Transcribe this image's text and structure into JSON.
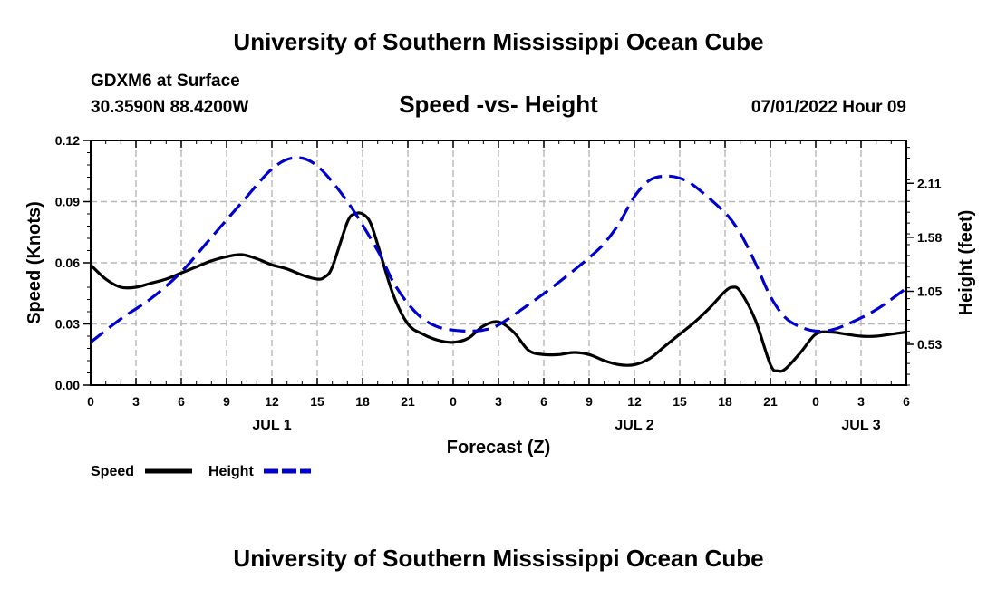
{
  "header": {
    "title": "University of Southern Mississippi Ocean Cube",
    "station": "GDXM6 at Surface",
    "location": "30.3590N  88.4200W",
    "chart_title": "Speed -vs- Height",
    "date": "07/01/2022 Hour 09",
    "footer_title": "University of Southern Mississippi Ocean Cube"
  },
  "legend": {
    "speed_label": "Speed",
    "height_label": "Height"
  },
  "colors": {
    "speed": "#000000",
    "height": "#0000cc"
  },
  "chart_data": {
    "type": "line",
    "title": "Speed -vs- Height",
    "xlabel": "Forecast (Z)",
    "ylabel": "Speed (Knots)",
    "y2label": "Height (feet)",
    "x_range": [
      0,
      54
    ],
    "x_ticks": [
      0,
      3,
      6,
      9,
      12,
      15,
      18,
      21,
      24,
      27,
      30,
      33,
      36,
      39,
      42,
      45,
      48,
      51,
      54
    ],
    "x_tick_labels": [
      "0",
      "3",
      "6",
      "9",
      "12",
      "15",
      "18",
      "21",
      "0",
      "3",
      "6",
      "9",
      "12",
      "15",
      "18",
      "21",
      "0",
      "3",
      "6"
    ],
    "day_labels": [
      {
        "label": "JUL 1",
        "x": 12
      },
      {
        "label": "JUL 2",
        "x": 36
      },
      {
        "label": "JUL 3",
        "x": 51
      }
    ],
    "ylim": [
      0,
      0.12
    ],
    "y_ticks": [
      0,
      0.03,
      0.06,
      0.09,
      0.12
    ],
    "y_tick_labels": [
      "0.00",
      "0.03",
      "0.06",
      "0.09",
      "0.12"
    ],
    "y2lim": [
      0.13,
      2.53
    ],
    "y2_ticks": [
      0.53,
      1.05,
      1.58,
      2.11
    ],
    "y2_tick_labels": [
      "0.53",
      "1.05",
      "1.58",
      "2.11"
    ],
    "grid": true,
    "series": [
      {
        "name": "Speed",
        "axis": "left",
        "style": "solid",
        "x": [
          0,
          1,
          2,
          3,
          4,
          5,
          6,
          7,
          8,
          9,
          10,
          11,
          12,
          13,
          14,
          15,
          15.5,
          16,
          17,
          17.5,
          18,
          18.5,
          19,
          20,
          21,
          22,
          23,
          24,
          25,
          26,
          27,
          28,
          29,
          30,
          31,
          32,
          33,
          34,
          35,
          36,
          37,
          38,
          39,
          40,
          41,
          42,
          42.5,
          43,
          44,
          45,
          45.5,
          46,
          47,
          48,
          49,
          50,
          51,
          52,
          53,
          54
        ],
        "values": [
          0.059,
          0.052,
          0.048,
          0.048,
          0.05,
          0.052,
          0.055,
          0.058,
          0.061,
          0.063,
          0.064,
          0.062,
          0.059,
          0.057,
          0.054,
          0.052,
          0.053,
          0.058,
          0.08,
          0.084,
          0.084,
          0.08,
          0.069,
          0.045,
          0.03,
          0.025,
          0.022,
          0.021,
          0.023,
          0.029,
          0.031,
          0.026,
          0.017,
          0.015,
          0.015,
          0.016,
          0.015,
          0.012,
          0.01,
          0.01,
          0.013,
          0.019,
          0.025,
          0.031,
          0.038,
          0.046,
          0.048,
          0.046,
          0.032,
          0.01,
          0.007,
          0.008,
          0.016,
          0.025,
          0.026,
          0.025,
          0.024,
          0.024,
          0.025,
          0.026
        ]
      },
      {
        "name": "Height",
        "axis": "right",
        "style": "dashed",
        "x": [
          0,
          2,
          4,
          6,
          8,
          10,
          12,
          13.5,
          15,
          17,
          19,
          20,
          21,
          22,
          23,
          24,
          25,
          26,
          27,
          29,
          31,
          33,
          34,
          35,
          36,
          37,
          38,
          39,
          40,
          42,
          43,
          44,
          45,
          46,
          47,
          48,
          49,
          50,
          52,
          54
        ],
        "values": [
          0.55,
          0.78,
          0.98,
          1.24,
          1.58,
          1.92,
          2.25,
          2.36,
          2.28,
          1.93,
          1.45,
          1.15,
          0.93,
          0.78,
          0.7,
          0.67,
          0.66,
          0.67,
          0.72,
          0.92,
          1.14,
          1.38,
          1.52,
          1.72,
          1.98,
          2.14,
          2.18,
          2.16,
          2.08,
          1.82,
          1.62,
          1.33,
          1.0,
          0.79,
          0.7,
          0.66,
          0.67,
          0.72,
          0.87,
          1.08
        ]
      }
    ]
  }
}
